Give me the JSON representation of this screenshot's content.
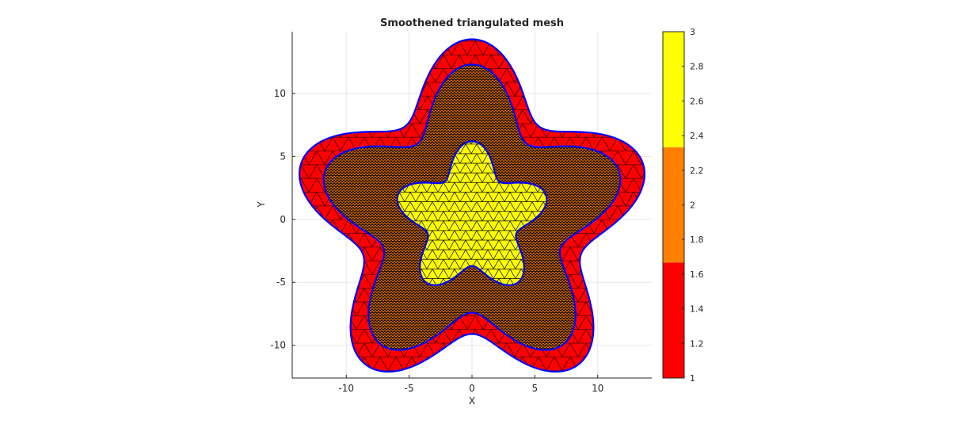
{
  "chart_data": {
    "type": "mesh",
    "title": "Smoothened triangulated mesh",
    "xlabel": "X",
    "ylabel": "Y",
    "xlim": [
      -14.3,
      14.3
    ],
    "ylim": [
      -12.6,
      14.9
    ],
    "xticks": [
      -10,
      -5,
      0,
      5,
      10
    ],
    "xtick_labels": [
      "-10",
      "-5",
      "0",
      "5",
      "10"
    ],
    "yticks": [
      -10,
      -5,
      0,
      5,
      10
    ],
    "ytick_labels": [
      "-10",
      "-5",
      "0",
      "5",
      "10"
    ],
    "grid": true,
    "regions": [
      {
        "label": "outer ring",
        "value": 1,
        "color": "#ff0000",
        "shape": "five-lobed star",
        "lobe_tip_radius": 14.3,
        "valley_radius": 9.1
      },
      {
        "label": "middle ring",
        "value": 2,
        "color": "#7a3a10",
        "shape": "five-lobed star",
        "lobe_tip_radius": 12.3,
        "valley_radius": 7.4
      },
      {
        "label": "inner star",
        "value": 3,
        "color": "#ffff00",
        "shape": "five-lobed star",
        "lobe_tip_radius": 6.2,
        "valley_radius": 3.7
      }
    ],
    "boundary_color": "#0000ff",
    "colorbar": {
      "range": [
        1,
        3
      ],
      "ticks": [
        1,
        1.2,
        1.4,
        1.6,
        1.8,
        2,
        2.2,
        2.4,
        2.6,
        2.8,
        3
      ],
      "tick_labels": [
        "1",
        "1.2",
        "1.4",
        "1.6",
        "1.8",
        "2",
        "2.2",
        "2.4",
        "2.6",
        "2.8",
        "3"
      ],
      "segments": [
        {
          "from": 1,
          "to": 1.667,
          "color": "#ff0000"
        },
        {
          "from": 1.667,
          "to": 2.333,
          "color": "#ff8000"
        },
        {
          "from": 2.333,
          "to": 3,
          "color": "#ffff00"
        }
      ]
    }
  }
}
